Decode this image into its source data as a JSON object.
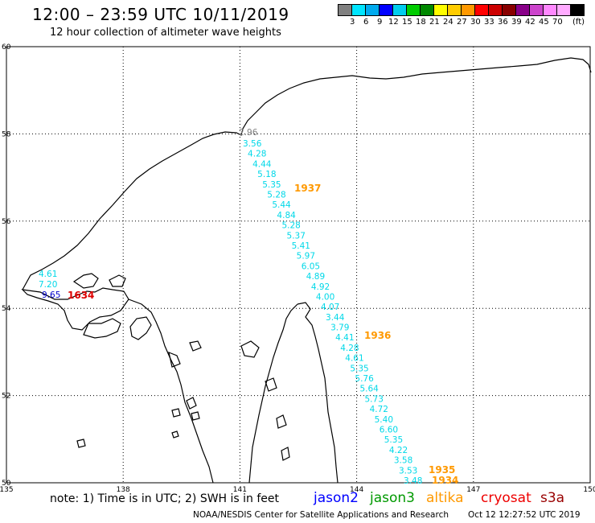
{
  "header": {
    "title": "12:00 – 23:59 UTC 10/11/2019",
    "subtitle": "12 hour collection of altimeter wave heights"
  },
  "legend": {
    "colors": [
      "#808080",
      "#00e5ff",
      "#00aaee",
      "#0000ff",
      "#00ccee",
      "#00cc00",
      "#008800",
      "#ffff00",
      "#ffcc00",
      "#ff9900",
      "#ff0000",
      "#cc0000",
      "#880000",
      "#880088",
      "#cc44cc",
      "#ff88ff",
      "#ffaaff",
      "#000000"
    ],
    "labels": [
      "3",
      "6",
      "9",
      "12",
      "15",
      "18",
      "21",
      "24",
      "27",
      "30",
      "33",
      "36",
      "39",
      "42",
      "45",
      "70"
    ],
    "unit": "(ft)"
  },
  "map": {
    "lon_range": [
      135,
      150
    ],
    "lat_range": [
      50,
      60
    ],
    "lon_ticks": [
      "135",
      "138",
      "141",
      "144",
      "147",
      "150"
    ],
    "lat_ticks": [
      "50",
      "52",
      "54",
      "56",
      "58",
      "60"
    ],
    "grid": "dotted"
  },
  "track_main": {
    "color": "#00d8e8",
    "first_label": {
      "text": "2.96",
      "color": "#808080"
    },
    "values": [
      "3.56",
      "4.28",
      "4.44",
      "5.18",
      "5.35",
      "5.28",
      "5.44",
      "4.84",
      "5.28",
      "5.37",
      "5.41",
      "5.97",
      "6.05",
      "4.89",
      "4.92",
      "4.00",
      "4.07",
      "3.44",
      "3.79",
      "4.41",
      "4.28",
      "4.61",
      "5.35",
      "5.76",
      "5.64",
      "5.73",
      "4.72",
      "5.40",
      "6.60",
      "5.35",
      "4.22",
      "3.58",
      "3.53",
      "3.48"
    ]
  },
  "track_west": {
    "values": [
      {
        "text": "4.61",
        "color": "#00d8e8"
      },
      {
        "text": "7.20",
        "color": "#00d8e8"
      },
      {
        "text": "9.65",
        "color": "#0000cc"
      }
    ]
  },
  "pass_times": [
    {
      "text": "1937",
      "color": "#ff9900"
    },
    {
      "text": "1936",
      "color": "#ff9900"
    },
    {
      "text": "1935",
      "color": "#ff9900"
    },
    {
      "text": "1934",
      "color": "#ff9900"
    },
    {
      "text": "1634",
      "color": "#dd0000"
    }
  ],
  "footer": {
    "note": "note: 1) Time is in UTC; 2) SWH is in feet",
    "satellites": [
      {
        "name": "jason2",
        "color": "#0000ff"
      },
      {
        "name": "jason3",
        "color": "#009900"
      },
      {
        "name": "altika",
        "color": "#ff9900"
      },
      {
        "name": "cryosat",
        "color": "#ee0000"
      },
      {
        "name": "s3a",
        "color": "#990000"
      }
    ],
    "credit": "NOAA/NESDIS Center for Satellite Applications and Research",
    "timestamp": "Oct 12 12:27:52 UTC 2019"
  }
}
